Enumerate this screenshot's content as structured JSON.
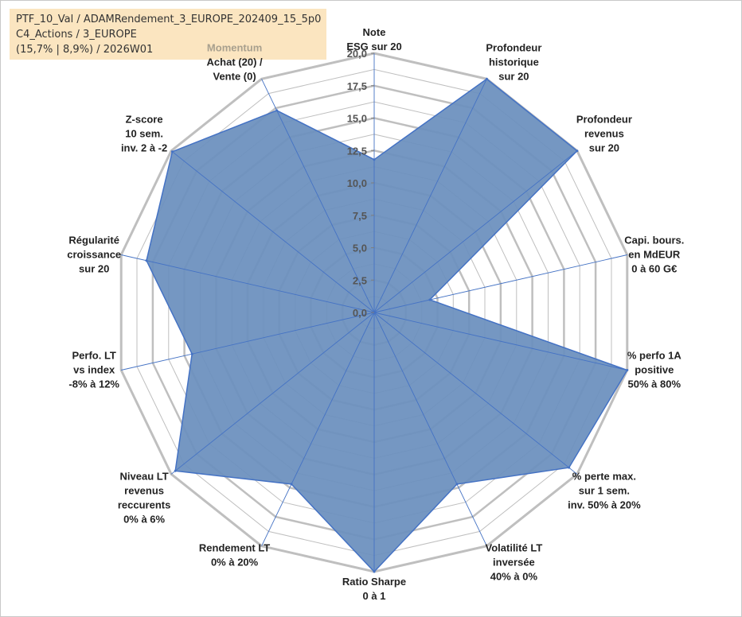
{
  "info": {
    "line1": "PTF_10_Val / ADAMRendement_3_EUROPE_202409_15_5p0",
    "line2": "C4_Actions / 3_EUROPE",
    "line3": "(15,7% | 8,9%) / 2026W01"
  },
  "colors": {
    "fill": "#6b8fbd",
    "outline": "#4472c4",
    "grid": "#bfbfbf",
    "spoke": "#4472c4",
    "info_bg": "#fbe5c0"
  },
  "chart_data": {
    "type": "radar",
    "range": [
      0,
      20
    ],
    "ticks": [
      "0,0",
      "2,5",
      "5,0",
      "7,5",
      "10,0",
      "12,5",
      "15,0",
      "17,5",
      "20,0"
    ],
    "tick_values": [
      0,
      2.5,
      5,
      7.5,
      10,
      12.5,
      15,
      17.5,
      20
    ],
    "grid_major_every": 2.5,
    "grid_minor_every": 1.25,
    "axes": [
      {
        "lines": [
          "Note",
          "ESG sur 20"
        ],
        "value": 11.8
      },
      {
        "lines": [
          "Profondeur",
          "historique",
          "sur 20"
        ],
        "value": 20
      },
      {
        "lines": [
          "Profondeur",
          "revenus",
          "sur 20"
        ],
        "value": 20
      },
      {
        "lines": [
          "Capi. bours.",
          "en MdEUR",
          "0 à 60 G€"
        ],
        "value": 4.4
      },
      {
        "lines": [
          "% perfo 1A",
          "positive",
          "50% à 80%"
        ],
        "value": 20
      },
      {
        "lines": [
          "% perte max.",
          "sur 1 sem.",
          "inv. 50% à 20%"
        ],
        "value": 19.2
      },
      {
        "lines": [
          "Volatilité LT",
          "inversée",
          "40% à 0%"
        ],
        "value": 14.7
      },
      {
        "lines": [
          "Ratio Sharpe",
          "0 à 1"
        ],
        "value": 20
      },
      {
        "lines": [
          "Rendement LT",
          "0% à 20%"
        ],
        "value": 14.7
      },
      {
        "lines": [
          "Niveau LT",
          "revenus",
          "reccurents",
          "0% à 6%"
        ],
        "value": 19.6
      },
      {
        "lines": [
          "Perfo. LT",
          "vs index",
          "-8% à 12%"
        ],
        "value": 14.4
      },
      {
        "lines": [
          "Régularité",
          "croissance",
          "sur 20"
        ],
        "value": 18
      },
      {
        "lines": [
          "Z-score",
          "10 sem.",
          "inv. 2 à -2"
        ],
        "value": 19.9
      },
      {
        "lines": [
          "Momentum",
          "Achat (20) /",
          "Vente (0)"
        ],
        "value": 17.3,
        "first_line_muted": true
      }
    ]
  }
}
